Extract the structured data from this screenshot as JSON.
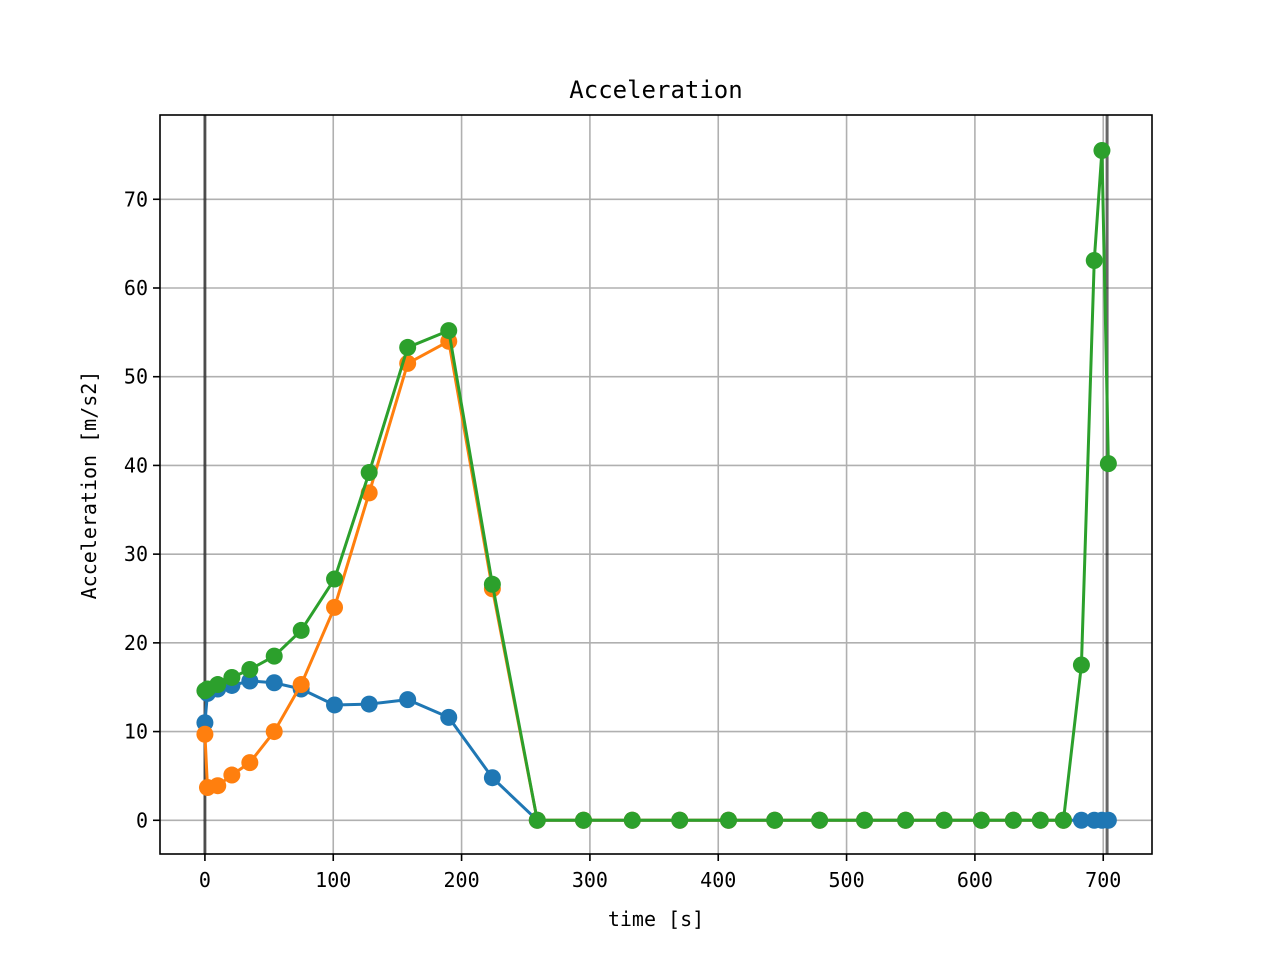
{
  "chart_data": {
    "type": "line",
    "title": "Acceleration",
    "xlabel": "time [s]",
    "ylabel": "Acceleration [m/s2]",
    "xlim": [
      -35,
      738
    ],
    "ylim": [
      -3.8,
      79.5
    ],
    "xticks": [
      0,
      100,
      200,
      300,
      400,
      500,
      600,
      700
    ],
    "yticks": [
      0,
      10,
      20,
      30,
      40,
      50,
      60,
      70
    ],
    "grid": true,
    "vlines": [
      0,
      703
    ],
    "series": [
      {
        "color": "#1f77b4",
        "x": [
          0,
          2,
          10,
          21,
          35,
          54,
          75,
          101,
          128,
          158,
          190,
          224,
          259,
          295,
          333,
          370,
          408,
          444,
          479,
          514,
          546,
          576,
          605,
          630,
          651,
          669,
          683,
          693,
          699,
          704
        ],
        "y": [
          11.0,
          14.3,
          14.8,
          15.2,
          15.7,
          15.5,
          14.8,
          13.0,
          13.1,
          13.6,
          11.6,
          4.8,
          0,
          0,
          0,
          0,
          0,
          0,
          0,
          0,
          0,
          0,
          0,
          0,
          0,
          0,
          0,
          0,
          0,
          0
        ]
      },
      {
        "color": "#ff7f0e",
        "x": [
          0,
          2,
          10,
          21,
          35,
          54,
          75,
          101,
          128,
          158,
          190,
          224,
          259,
          295,
          333,
          370,
          408,
          444,
          479,
          514,
          546,
          576,
          605,
          630,
          651,
          669
        ],
        "y": [
          9.7,
          3.7,
          3.9,
          5.1,
          6.5,
          10.0,
          15.3,
          24.0,
          36.9,
          51.5,
          54.0,
          26.1,
          0,
          0,
          0,
          0,
          0,
          0,
          0,
          0,
          0,
          0,
          0,
          0,
          0,
          0
        ]
      },
      {
        "color": "#2ca02c",
        "x": [
          0,
          2,
          10,
          21,
          35,
          54,
          75,
          101,
          128,
          158,
          190,
          224,
          259,
          295,
          333,
          370,
          408,
          444,
          479,
          514,
          546,
          576,
          605,
          630,
          651,
          669,
          683,
          693,
          699,
          704
        ],
        "y": [
          14.6,
          14.8,
          15.3,
          16.1,
          17.0,
          18.5,
          21.4,
          27.2,
          39.2,
          53.3,
          55.2,
          26.6,
          0,
          0,
          0,
          0,
          0,
          0,
          0,
          0,
          0,
          0,
          0,
          0,
          0,
          0,
          17.5,
          63.1,
          75.5,
          40.2
        ]
      }
    ]
  }
}
